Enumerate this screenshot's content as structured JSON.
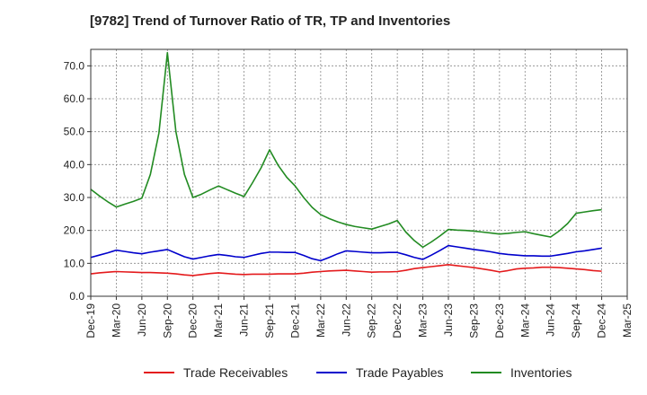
{
  "chart_data": {
    "type": "line",
    "title": "[9782]  Trend of Turnover Ratio of TR, TP and Inventories",
    "xlabel": "",
    "ylabel": "",
    "ylim": [
      0,
      75
    ],
    "yticks": [
      "0.0",
      "10.0",
      "20.0",
      "30.0",
      "40.0",
      "50.0",
      "60.0",
      "70.0"
    ],
    "xticks": [
      "Dec-19",
      "Mar-20",
      "Jun-20",
      "Sep-20",
      "Dec-20",
      "Mar-21",
      "Jun-21",
      "Sep-21",
      "Dec-21",
      "Mar-22",
      "Jun-22",
      "Sep-22",
      "Dec-22",
      "Mar-23",
      "Jun-23",
      "Sep-23",
      "Dec-23",
      "Mar-24",
      "Jun-24",
      "Sep-24",
      "Dec-24",
      "Mar-25"
    ],
    "x": [
      "2019-12",
      "2020-01",
      "2020-02",
      "2020-03",
      "2020-04",
      "2020-05",
      "2020-06",
      "2020-07",
      "2020-08",
      "2020-09",
      "2020-10",
      "2020-11",
      "2020-12",
      "2021-01",
      "2021-02",
      "2021-03",
      "2021-04",
      "2021-05",
      "2021-06",
      "2021-07",
      "2021-08",
      "2021-09",
      "2021-10",
      "2021-11",
      "2021-12",
      "2022-01",
      "2022-02",
      "2022-03",
      "2022-04",
      "2022-05",
      "2022-06",
      "2022-07",
      "2022-08",
      "2022-09",
      "2022-10",
      "2022-11",
      "2022-12",
      "2023-01",
      "2023-02",
      "2023-03",
      "2023-04",
      "2023-05",
      "2023-06",
      "2023-07",
      "2023-08",
      "2023-09",
      "2023-10",
      "2023-11",
      "2023-12",
      "2024-01",
      "2024-02",
      "2024-03",
      "2024-04",
      "2024-05",
      "2024-06",
      "2024-07",
      "2024-08",
      "2024-09",
      "2024-10",
      "2024-11",
      "2024-12"
    ],
    "series": [
      {
        "name": "Trade Receivables",
        "color": "#e41a1c",
        "values": [
          6.8,
          7.1,
          7.3,
          7.5,
          7.4,
          7.3,
          7.2,
          7.2,
          7.1,
          7.0,
          6.8,
          6.5,
          6.3,
          6.6,
          6.9,
          7.1,
          6.9,
          6.7,
          6.6,
          6.7,
          6.7,
          6.7,
          6.8,
          6.8,
          6.8,
          7.0,
          7.3,
          7.5,
          7.7,
          7.8,
          7.9,
          7.7,
          7.5,
          7.3,
          7.4,
          7.4,
          7.5,
          7.9,
          8.4,
          8.7,
          9.0,
          9.3,
          9.6,
          9.3,
          9.0,
          8.7,
          8.3,
          7.9,
          7.4,
          7.8,
          8.3,
          8.5,
          8.6,
          8.8,
          8.8,
          8.7,
          8.5,
          8.3,
          8.1,
          7.8,
          7.6
        ]
      },
      {
        "name": "Trade Payables",
        "color": "#0000cc",
        "values": [
          11.8,
          12.5,
          13.2,
          14.0,
          13.6,
          13.2,
          12.9,
          13.4,
          13.8,
          14.2,
          13.1,
          12.0,
          11.3,
          11.8,
          12.3,
          12.7,
          12.4,
          12.0,
          11.8,
          12.4,
          13.0,
          13.4,
          13.4,
          13.3,
          13.3,
          12.4,
          11.4,
          10.8,
          11.8,
          12.9,
          13.8,
          13.6,
          13.4,
          13.2,
          13.2,
          13.3,
          13.3,
          12.6,
          11.8,
          11.2,
          12.5,
          13.9,
          15.4,
          15.0,
          14.6,
          14.2,
          13.9,
          13.5,
          13.0,
          12.7,
          12.5,
          12.3,
          12.3,
          12.2,
          12.2,
          12.6,
          13.0,
          13.5,
          13.8,
          14.2,
          14.6
        ]
      },
      {
        "name": "Inventories",
        "color": "#228b22",
        "values": [
          32.5,
          30.5,
          28.7,
          27.1,
          28.0,
          28.8,
          29.8,
          37.0,
          49.5,
          74.0,
          50.0,
          37.0,
          30.0,
          31.0,
          32.3,
          33.5,
          32.4,
          31.3,
          30.3,
          34.5,
          39.0,
          44.5,
          39.8,
          36.2,
          33.5,
          30.0,
          27.0,
          24.8,
          23.6,
          22.6,
          21.8,
          21.2,
          20.8,
          20.4,
          21.2,
          22.0,
          23.0,
          19.5,
          16.9,
          14.9,
          16.5,
          18.3,
          20.3,
          20.1,
          20.0,
          19.8,
          19.5,
          19.2,
          18.9,
          19.1,
          19.4,
          19.6,
          19.0,
          18.5,
          18.0,
          19.8,
          22.1,
          25.2,
          25.6,
          26.0,
          26.3
        ]
      }
    ],
    "legend_position": "bottom",
    "grid": true
  }
}
